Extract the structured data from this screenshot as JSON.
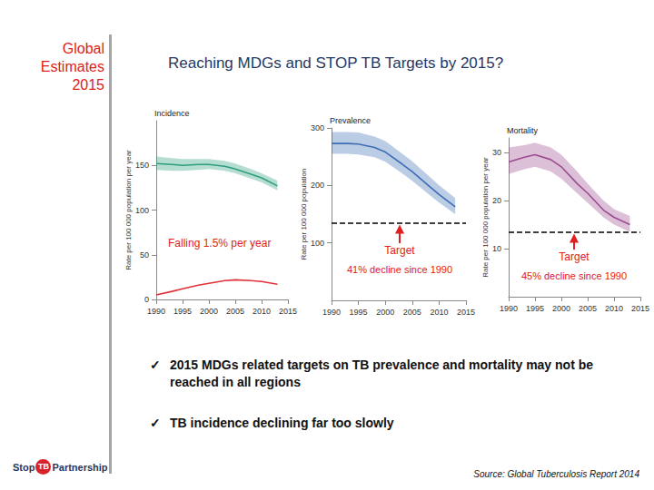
{
  "header": {
    "lines": [
      "Global",
      "Estimates",
      "2015"
    ]
  },
  "title": "Reaching MDGs and STOP TB Targets by 2015?",
  "chart_data": [
    {
      "type": "line",
      "title": "Incidence",
      "y_label": "Rate per 100 000 population per year",
      "x": [
        1990,
        1993,
        1995,
        1998,
        2000,
        2003,
        2005,
        2008,
        2010,
        2013
      ],
      "series": [
        {
          "color": "#2e9e7f",
          "values": [
            152,
            151,
            150,
            151,
            151,
            149,
            146,
            140,
            136,
            127
          ],
          "lower": [
            145,
            144,
            144,
            145,
            146,
            144,
            141,
            135,
            131,
            122
          ],
          "upper": [
            160,
            158,
            157,
            157,
            157,
            155,
            152,
            146,
            141,
            133
          ]
        },
        {
          "color": "#e0303a",
          "values": [
            5,
            9,
            12,
            16,
            18,
            21,
            22,
            21,
            20,
            17
          ]
        }
      ],
      "xlim": [
        1990,
        2015
      ],
      "xticks": [
        1990,
        1995,
        2000,
        2005,
        2010,
        2015
      ],
      "ylim": [
        0,
        200
      ],
      "yticks": [
        0,
        50,
        100,
        150
      ],
      "annotations": [
        "Falling 1.5% per year"
      ],
      "grid": false
    },
    {
      "type": "line",
      "title": "Prevalence",
      "y_label": "Rate per 100 000 population",
      "x": [
        1990,
        1993,
        1995,
        1998,
        2000,
        2003,
        2005,
        2008,
        2010,
        2013
      ],
      "series": [
        {
          "color": "#3d6db4",
          "values": [
            273,
            273,
            272,
            266,
            258,
            238,
            224,
            200,
            184,
            163
          ],
          "lower": [
            255,
            255,
            254,
            249,
            241,
            222,
            208,
            185,
            170,
            150
          ],
          "upper": [
            293,
            293,
            292,
            285,
            277,
            256,
            242,
            217,
            200,
            178
          ]
        }
      ],
      "xlim": [
        1990,
        2015
      ],
      "xticks": [
        1990,
        1995,
        2000,
        2005,
        2010,
        2015
      ],
      "ylim": [
        0,
        300
      ],
      "yticks": [
        100,
        200,
        300
      ],
      "target": {
        "value": 135,
        "label": [
          "Target",
          "41% decline since 1990"
        ]
      },
      "grid": false
    },
    {
      "type": "line",
      "title": "Mortality",
      "y_label": "Rate per 100 000 population per year",
      "x": [
        1990,
        1993,
        1995,
        1998,
        2000,
        2003,
        2005,
        2008,
        2010,
        2013
      ],
      "series": [
        {
          "color": "#9b4b8f",
          "values": [
            28,
            29,
            29.5,
            28.5,
            27,
            23.5,
            21.5,
            18,
            16.5,
            15
          ],
          "lower": [
            25.5,
            26.5,
            27,
            26,
            24.5,
            21.5,
            19.5,
            16.5,
            15,
            13.5
          ],
          "upper": [
            31,
            31.5,
            32,
            31,
            29.5,
            26,
            23.5,
            20,
            18.2,
            16.8
          ]
        }
      ],
      "xlim": [
        1990,
        2015
      ],
      "xticks": [
        1990,
        1995,
        2000,
        2005,
        2010,
        2015
      ],
      "ylim": [
        0,
        33
      ],
      "yticks": [
        10,
        20,
        30
      ],
      "target": {
        "value": 13.5,
        "label": [
          "Target",
          "45% decline since 1990"
        ]
      },
      "grid": false
    }
  ],
  "bullets": {
    "symbol": "✓",
    "items": [
      "2015 MDGs related targets on TB prevalence and mortality may not be reached in all regions",
      "TB incidence declining far too slowly"
    ]
  },
  "logo": [
    "Stop",
    "TB",
    "Partnership"
  ],
  "source": "Source: Global Tuberculosis Report 2014"
}
